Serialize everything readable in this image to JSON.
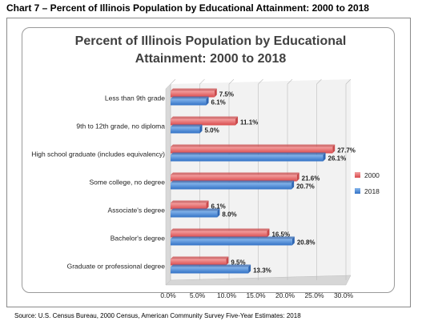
{
  "caption": "Chart 7 – Percent of Illinois Population by Educational Attainment: 2000 to 2018",
  "source": "Source: U.S. Census Bureau, 2000 Census, American Community Survey Five-Year Estimates: 2018",
  "chart_data": {
    "type": "bar",
    "orientation": "horizontal",
    "title": "Percent of Illinois Population by Educational Attainment: 2000 to 2018",
    "title_lines": [
      "Percent of Illinois Population by Educational",
      "Attainment: 2000 to 2018"
    ],
    "categories": [
      "Less than 9th grade",
      "9th to 12th grade, no diploma",
      "High school graduate (includes equivalency)",
      "Some college, no degree",
      "Associate's degree",
      "Bachelor's degree",
      "Graduate or professional degree"
    ],
    "series": [
      {
        "name": "2000",
        "values": [
          7.5,
          11.1,
          27.7,
          21.6,
          6.1,
          16.5,
          9.5
        ],
        "labels": [
          "7.5%",
          "11.1%",
          "27.7%",
          "21.6%",
          "6.1%",
          "16.5%",
          "9.5%"
        ],
        "color": "#e8686a"
      },
      {
        "name": "2018",
        "values": [
          6.1,
          5.0,
          26.1,
          20.7,
          8.0,
          20.8,
          13.3
        ],
        "labels": [
          "6.1%",
          "5.0%",
          "26.1%",
          "20.7%",
          "8.0%",
          "20.8%",
          "13.3%"
        ],
        "color": "#4f8fd8"
      }
    ],
    "xlim": [
      0,
      30
    ],
    "xticks": [
      "0.0%",
      "5.0%",
      "10.0%",
      "15.0%",
      "20.0%",
      "25.0%",
      "30.0%"
    ],
    "xtick_values": [
      0,
      5,
      10,
      15,
      20,
      25,
      30
    ],
    "grid": true,
    "legend_position": "right"
  }
}
